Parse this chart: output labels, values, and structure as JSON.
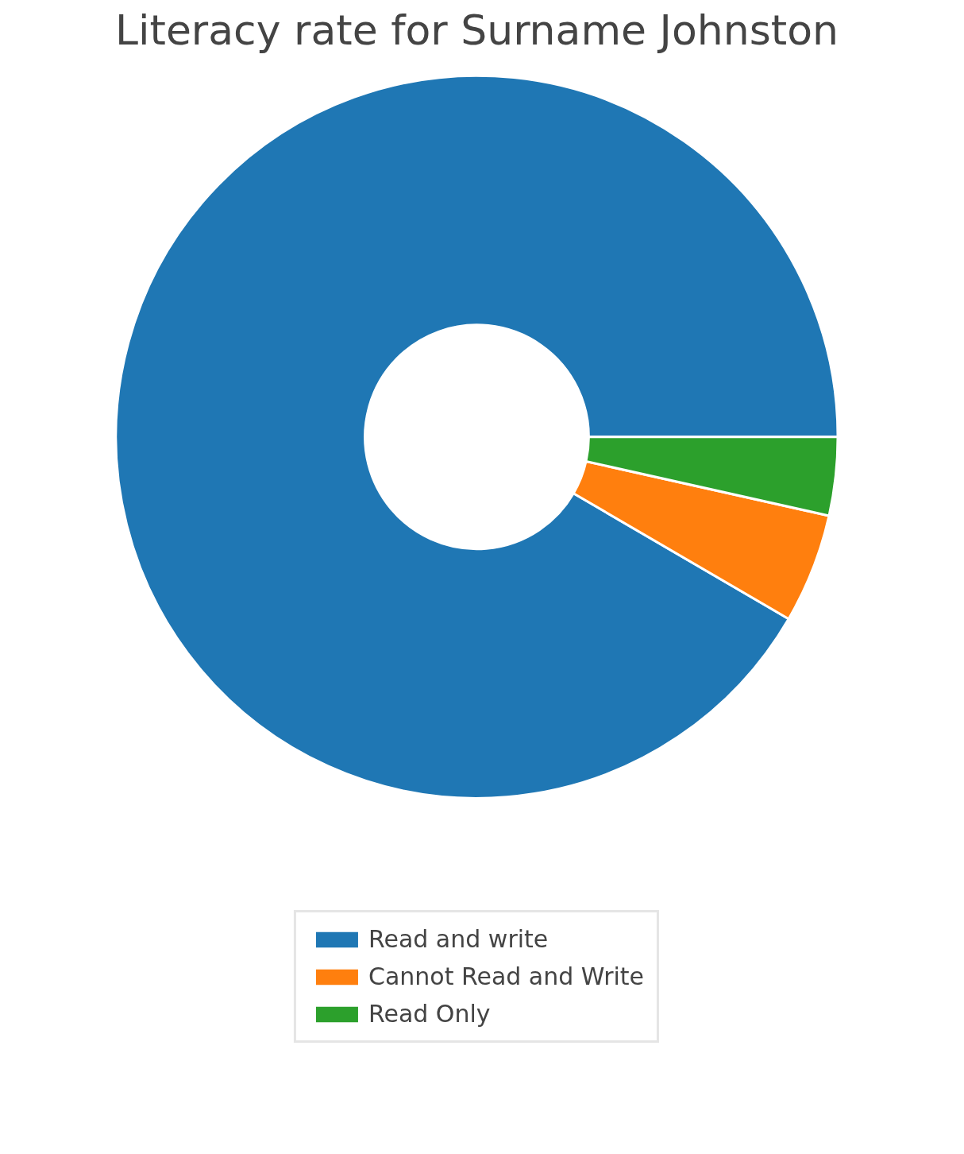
{
  "chart_data": {
    "type": "donut",
    "title": "Literacy rate for Surname Johnston",
    "categories": [
      "Read and write",
      "Cannot Read and Write",
      "Read Only"
    ],
    "values": [
      91.6,
      4.9,
      3.5
    ],
    "colors": [
      "#1f77b4",
      "#ff7f0e",
      "#2ca02c"
    ],
    "legend": "bottom"
  }
}
